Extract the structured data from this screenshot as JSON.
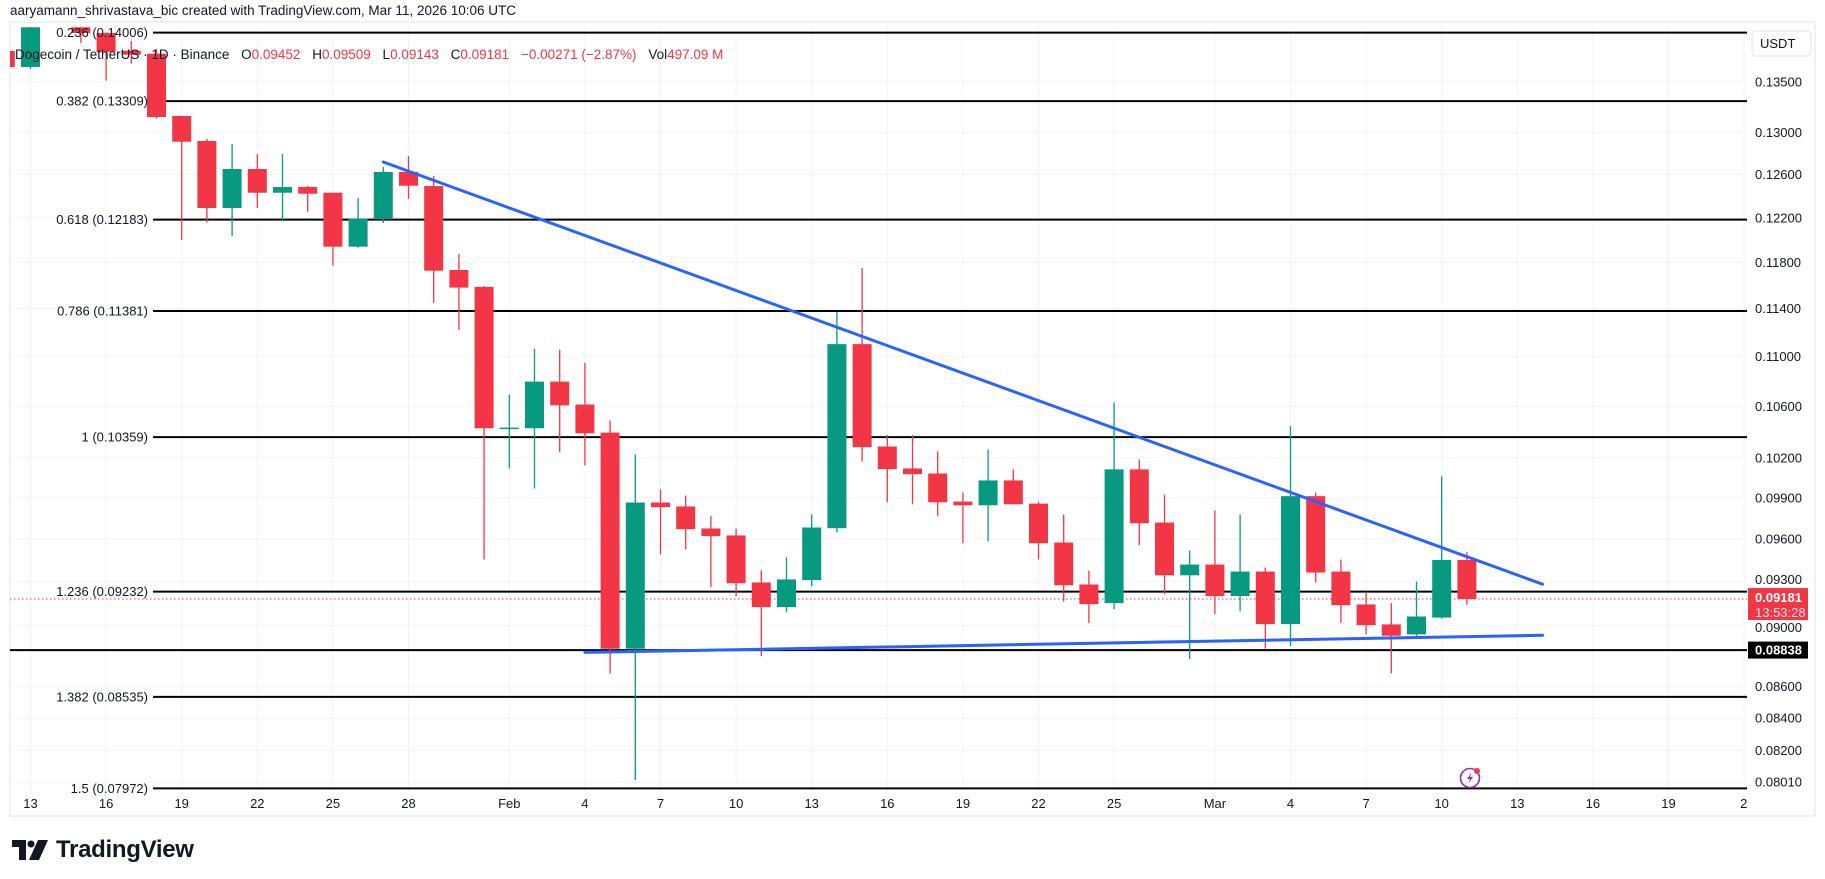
{
  "header": {
    "title": "aaryamann_shrivastava_bic created with TradingView.com, Mar 11, 2026 10:06 UTC",
    "symbol": "Dogecoin / TetherUS · 1D · Binance",
    "open_label": "O",
    "open": "0.09452",
    "high_label": "H",
    "high": "0.09509",
    "low_label": "L",
    "low": "0.09143",
    "close_label": "C",
    "close": "0.09181",
    "change": "−0.00271 (−2.87%)",
    "vol_label": "Vol",
    "vol": "497.09 M"
  },
  "price_axis": {
    "currency": "USDT",
    "last_price": "0.09181",
    "countdown": "13:53:28",
    "level_label": "0.08838"
  },
  "brand": {
    "name": "TradingView"
  },
  "colors": {
    "up": "#089981",
    "down": "#f23645",
    "trendline": "#2962ff",
    "fib": "#000000",
    "alert_icon": "#9c27b0"
  },
  "icons": {
    "alert": "lightning-alert-icon",
    "logo": "tradingview-logo-icon"
  },
  "chart_data": {
    "type": "candlestick",
    "interval": "1D",
    "yscale": "log",
    "ylim": [
      0.0797,
      0.141
    ],
    "grid": true,
    "columns": [
      "date",
      "open",
      "high",
      "low",
      "close"
    ],
    "candles": [
      [
        "2026-01-12",
        0.13816,
        0.139,
        0.136,
        0.13652
      ],
      [
        "2026-01-13",
        0.13652,
        0.141,
        0.13631,
        0.14062
      ],
      [
        "2026-01-15",
        0.14062,
        0.1408,
        0.13898,
        0.14002
      ],
      [
        "2026-01-16",
        0.14002,
        0.1401,
        0.13513,
        0.13806
      ],
      [
        "2026-01-17",
        0.13819,
        0.13919,
        0.13686,
        0.13778
      ],
      [
        "2026-01-18",
        0.13788,
        0.13836,
        0.13136,
        0.13152
      ],
      [
        "2026-01-19",
        0.13162,
        0.13162,
        0.12,
        0.12912
      ],
      [
        "2026-01-20",
        0.12919,
        0.12938,
        0.12159,
        0.12289
      ],
      [
        "2026-01-21",
        0.12289,
        0.1289,
        0.12035,
        0.12652
      ],
      [
        "2026-01-22",
        0.12652,
        0.12794,
        0.12289,
        0.1243
      ],
      [
        "2026-01-23",
        0.1243,
        0.12794,
        0.1217,
        0.12483
      ],
      [
        "2026-01-24",
        0.12483,
        0.12495,
        0.12252,
        0.12421
      ],
      [
        "2026-01-25",
        0.1243,
        0.1243,
        0.11772,
        0.1194
      ],
      [
        "2026-01-26",
        0.1194,
        0.12382,
        0.11931,
        0.12194
      ],
      [
        "2026-01-27",
        0.12187,
        0.12671,
        0.12153,
        0.12624
      ],
      [
        "2026-01-28",
        0.12624,
        0.12775,
        0.12372,
        0.12495
      ],
      [
        "2026-01-29",
        0.12492,
        0.12586,
        0.11449,
        0.11728
      ],
      [
        "2026-01-30",
        0.11734,
        0.11875,
        0.11221,
        0.11581
      ],
      [
        "2026-01-31",
        0.11587,
        0.11595,
        0.09456,
        0.10428
      ],
      [
        "2026-02-01",
        0.10428,
        0.10693,
        0.1012,
        0.10433
      ],
      [
        "2026-02-02",
        0.10428,
        0.11065,
        0.0997,
        0.10797
      ],
      [
        "2026-02-03",
        0.10797,
        0.11056,
        0.10244,
        0.10608
      ],
      [
        "2026-02-04",
        0.10614,
        0.1095,
        0.10143,
        0.10389
      ],
      [
        "2026-02-05",
        0.10394,
        0.10488,
        0.08686,
        0.08847
      ],
      [
        "2026-02-06",
        0.08847,
        0.10226,
        0.08022,
        0.09866
      ],
      [
        "2026-02-07",
        0.09866,
        0.09965,
        0.09493,
        0.09832
      ],
      [
        "2026-02-08",
        0.09837,
        0.09918,
        0.09528,
        0.09672
      ],
      [
        "2026-02-09",
        0.09677,
        0.09767,
        0.09263,
        0.09622
      ],
      [
        "2026-02-10",
        0.09627,
        0.09677,
        0.09201,
        0.0929
      ],
      [
        "2026-02-11",
        0.09295,
        0.0938,
        0.08798,
        0.09126
      ],
      [
        "2026-02-12",
        0.09126,
        0.0947,
        0.0909,
        0.09316
      ],
      [
        "2026-02-13",
        0.09311,
        0.09778,
        0.09268,
        0.09684
      ],
      [
        "2026-02-14",
        0.09679,
        0.11371,
        0.09648,
        0.11103
      ],
      [
        "2026-02-15",
        0.11103,
        0.11752,
        0.10173,
        0.10282
      ],
      [
        "2026-02-16",
        0.10287,
        0.10375,
        0.09868,
        0.10115
      ],
      [
        "2026-02-17",
        0.1012,
        0.10375,
        0.09853,
        0.10077
      ],
      [
        "2026-02-18",
        0.10082,
        0.1025,
        0.09767,
        0.09868
      ],
      [
        "2026-02-19",
        0.09873,
        0.0994,
        0.09571,
        0.09846
      ],
      [
        "2026-02-20",
        0.09846,
        0.10264,
        0.09586,
        0.1003
      ],
      [
        "2026-02-21",
        0.1003,
        0.10113,
        0.09853,
        0.09853
      ],
      [
        "2026-02-22",
        0.09858,
        0.09873,
        0.09456,
        0.09571
      ],
      [
        "2026-02-23",
        0.09576,
        0.09778,
        0.09164,
        0.09276
      ],
      [
        "2026-02-24",
        0.09281,
        0.09378,
        0.09018,
        0.09146
      ],
      [
        "2026-02-25",
        0.09153,
        0.10629,
        0.09112,
        0.10113
      ],
      [
        "2026-02-26",
        0.10113,
        0.10188,
        0.09557,
        0.09715
      ],
      [
        "2026-02-27",
        0.0972,
        0.09925,
        0.09213,
        0.09345
      ],
      [
        "2026-02-28",
        0.09345,
        0.09519,
        0.08779,
        0.0942
      ],
      [
        "2026-03-01",
        0.0942,
        0.09808,
        0.09078,
        0.09201
      ],
      [
        "2026-03-02",
        0.09201,
        0.09778,
        0.09098,
        0.09371
      ],
      [
        "2026-03-03",
        0.09371,
        0.09399,
        0.08847,
        0.09011
      ],
      [
        "2026-03-04",
        0.09011,
        0.10444,
        0.08864,
        0.09913
      ],
      [
        "2026-03-05",
        0.09913,
        0.0994,
        0.09295,
        0.09364
      ],
      [
        "2026-03-06",
        0.09371,
        0.09456,
        0.09018,
        0.09139
      ],
      [
        "2026-03-07",
        0.09144,
        0.09232,
        0.08942,
        0.09004
      ],
      [
        "2026-03-08",
        0.09009,
        0.09153,
        0.08686,
        0.08933
      ],
      [
        "2026-03-09",
        0.08942,
        0.09301,
        0.08915,
        0.09062
      ],
      [
        "2026-03-10",
        0.09055,
        0.1006,
        0.09048,
        0.09452
      ],
      [
        "2026-03-11",
        0.09452,
        0.09509,
        0.09143,
        0.09181
      ]
    ],
    "fib_levels": [
      {
        "label": "0.236 (0.14006)",
        "price": 0.14006
      },
      {
        "label": "0.382 (0.13309)",
        "price": 0.13309
      },
      {
        "label": "0.618 (0.12183)",
        "price": 0.12183
      },
      {
        "label": "0.786 (0.11381)",
        "price": 0.11381
      },
      {
        "label": "1 (0.10359)",
        "price": 0.10359
      },
      {
        "label": "1.236 (0.09232)",
        "price": 0.09232
      },
      {
        "label": "1.382 (0.08535)",
        "price": 0.08535
      },
      {
        "label": "1.5 (0.07972)",
        "price": 0.07972
      }
    ],
    "horizontal_level": 0.08838,
    "last_price": 0.09181,
    "trendlines": [
      {
        "name": "",
        "from": [
          "2026-01-27",
          0.12718
        ],
        "to": [
          "2026-03-14",
          0.09283
        ]
      },
      {
        "name": "",
        "from": [
          "2026-02-04",
          0.08823
        ],
        "to": [
          "2026-03-14",
          0.08936
        ]
      }
    ],
    "y_ticks": [
      "0.13500",
      "0.13000",
      "0.12600",
      "0.12200",
      "0.11800",
      "0.11400",
      "0.11000",
      "0.10600",
      "0.10200",
      "0.09900",
      "0.09600",
      "0.09300",
      "0.09000",
      "0.08600",
      "0.08400",
      "0.08200",
      "0.08010"
    ],
    "x_ticks": [
      {
        "label": "13",
        "date": "2026-01-13"
      },
      {
        "label": "16",
        "date": "2026-01-16"
      },
      {
        "label": "19",
        "date": "2026-01-19"
      },
      {
        "label": "22",
        "date": "2026-01-22"
      },
      {
        "label": "25",
        "date": "2026-01-25"
      },
      {
        "label": "28",
        "date": "2026-01-28"
      },
      {
        "label": "Feb",
        "date": "2026-02-01"
      },
      {
        "label": "4",
        "date": "2026-02-04"
      },
      {
        "label": "7",
        "date": "2026-02-07"
      },
      {
        "label": "10",
        "date": "2026-02-10"
      },
      {
        "label": "13",
        "date": "2026-02-13"
      },
      {
        "label": "16",
        "date": "2026-02-16"
      },
      {
        "label": "19",
        "date": "2026-02-19"
      },
      {
        "label": "22",
        "date": "2026-02-22"
      },
      {
        "label": "25",
        "date": "2026-02-25"
      },
      {
        "label": "Mar",
        "date": "2026-03-01"
      },
      {
        "label": "4",
        "date": "2026-03-04"
      },
      {
        "label": "7",
        "date": "2026-03-07"
      },
      {
        "label": "10",
        "date": "2026-03-10"
      },
      {
        "label": "13",
        "date": "2026-03-13"
      },
      {
        "label": "16",
        "date": "2026-03-16"
      },
      {
        "label": "19",
        "date": "2026-03-19"
      },
      {
        "label": "2",
        "date": "2026-03-22"
      }
    ]
  }
}
